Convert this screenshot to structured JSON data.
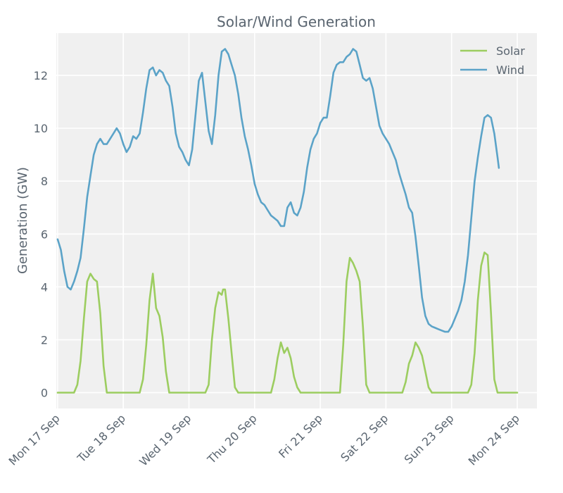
{
  "chart_data": {
    "type": "line",
    "title": "Solar/Wind Generation",
    "xlabel": "",
    "ylabel": "Generation (GW)",
    "xlim": [
      -0.02,
      7.3
    ],
    "ylim": [
      -0.6,
      13.6
    ],
    "yticks": [
      0,
      2,
      4,
      6,
      8,
      10,
      12
    ],
    "xticks": [
      {
        "pos": 0,
        "label": "Mon 17 Sep"
      },
      {
        "pos": 1,
        "label": "Tue 18 Sep"
      },
      {
        "pos": 2,
        "label": "Wed 19 Sep"
      },
      {
        "pos": 3,
        "label": "Thu 20 Sep"
      },
      {
        "pos": 4,
        "label": "Fri 21 Sep"
      },
      {
        "pos": 5,
        "label": "Sat 22 Sep"
      },
      {
        "pos": 6,
        "label": "Sun 23 Sep"
      },
      {
        "pos": 7,
        "label": "Mon 24 Sep"
      }
    ],
    "grid": true,
    "legend_position": "top-right",
    "series": [
      {
        "name": "Solar",
        "color": "#9ccd60",
        "points": [
          [
            0.0,
            0
          ],
          [
            0.25,
            0
          ],
          [
            0.3,
            0.3
          ],
          [
            0.35,
            1.2
          ],
          [
            0.4,
            2.8
          ],
          [
            0.45,
            4.2
          ],
          [
            0.5,
            4.5
          ],
          [
            0.55,
            4.3
          ],
          [
            0.6,
            4.2
          ],
          [
            0.65,
            3.0
          ],
          [
            0.7,
            1.0
          ],
          [
            0.75,
            0
          ],
          [
            1.0,
            0
          ],
          [
            1.25,
            0
          ],
          [
            1.3,
            0.5
          ],
          [
            1.35,
            1.8
          ],
          [
            1.4,
            3.5
          ],
          [
            1.45,
            4.5
          ],
          [
            1.5,
            3.2
          ],
          [
            1.55,
            2.9
          ],
          [
            1.6,
            2.1
          ],
          [
            1.65,
            0.8
          ],
          [
            1.7,
            0
          ],
          [
            2.0,
            0
          ],
          [
            2.25,
            0
          ],
          [
            2.3,
            0.3
          ],
          [
            2.35,
            2.0
          ],
          [
            2.4,
            3.2
          ],
          [
            2.45,
            3.8
          ],
          [
            2.5,
            3.7
          ],
          [
            2.52,
            3.9
          ],
          [
            2.55,
            3.9
          ],
          [
            2.6,
            2.8
          ],
          [
            2.65,
            1.5
          ],
          [
            2.7,
            0.2
          ],
          [
            2.75,
            0
          ],
          [
            3.0,
            0
          ],
          [
            3.25,
            0
          ],
          [
            3.3,
            0.5
          ],
          [
            3.35,
            1.3
          ],
          [
            3.4,
            1.9
          ],
          [
            3.45,
            1.5
          ],
          [
            3.5,
            1.7
          ],
          [
            3.55,
            1.3
          ],
          [
            3.6,
            0.6
          ],
          [
            3.65,
            0.2
          ],
          [
            3.7,
            0
          ],
          [
            4.0,
            0
          ],
          [
            4.3,
            0
          ],
          [
            4.35,
            1.8
          ],
          [
            4.4,
            4.2
          ],
          [
            4.45,
            5.1
          ],
          [
            4.5,
            4.9
          ],
          [
            4.55,
            4.6
          ],
          [
            4.6,
            4.2
          ],
          [
            4.65,
            2.5
          ],
          [
            4.7,
            0.3
          ],
          [
            4.75,
            0
          ],
          [
            5.0,
            0
          ],
          [
            5.25,
            0
          ],
          [
            5.3,
            0.4
          ],
          [
            5.35,
            1.1
          ],
          [
            5.4,
            1.4
          ],
          [
            5.45,
            1.9
          ],
          [
            5.5,
            1.7
          ],
          [
            5.55,
            1.4
          ],
          [
            5.6,
            0.8
          ],
          [
            5.65,
            0.2
          ],
          [
            5.7,
            0
          ],
          [
            6.0,
            0
          ],
          [
            6.25,
            0
          ],
          [
            6.3,
            0.3
          ],
          [
            6.35,
            1.5
          ],
          [
            6.4,
            3.5
          ],
          [
            6.45,
            4.8
          ],
          [
            6.5,
            5.3
          ],
          [
            6.55,
            5.2
          ],
          [
            6.6,
            3.0
          ],
          [
            6.65,
            0.5
          ],
          [
            6.7,
            0
          ],
          [
            7.0,
            0
          ]
        ]
      },
      {
        "name": "Wind",
        "color": "#5ba3c8",
        "points": [
          [
            0.0,
            5.8
          ],
          [
            0.05,
            5.4
          ],
          [
            0.1,
            4.6
          ],
          [
            0.15,
            4.0
          ],
          [
            0.2,
            3.9
          ],
          [
            0.25,
            4.2
          ],
          [
            0.3,
            4.6
          ],
          [
            0.35,
            5.1
          ],
          [
            0.4,
            6.2
          ],
          [
            0.45,
            7.4
          ],
          [
            0.5,
            8.2
          ],
          [
            0.55,
            9.0
          ],
          [
            0.6,
            9.4
          ],
          [
            0.65,
            9.6
          ],
          [
            0.7,
            9.4
          ],
          [
            0.75,
            9.4
          ],
          [
            0.8,
            9.6
          ],
          [
            0.85,
            9.8
          ],
          [
            0.9,
            10.0
          ],
          [
            0.95,
            9.8
          ],
          [
            1.0,
            9.4
          ],
          [
            1.05,
            9.1
          ],
          [
            1.1,
            9.3
          ],
          [
            1.15,
            9.7
          ],
          [
            1.2,
            9.6
          ],
          [
            1.25,
            9.8
          ],
          [
            1.3,
            10.6
          ],
          [
            1.35,
            11.5
          ],
          [
            1.4,
            12.2
          ],
          [
            1.45,
            12.3
          ],
          [
            1.5,
            12.0
          ],
          [
            1.55,
            12.2
          ],
          [
            1.6,
            12.1
          ],
          [
            1.65,
            11.8
          ],
          [
            1.7,
            11.6
          ],
          [
            1.75,
            10.8
          ],
          [
            1.8,
            9.8
          ],
          [
            1.85,
            9.3
          ],
          [
            1.9,
            9.1
          ],
          [
            1.95,
            8.8
          ],
          [
            2.0,
            8.6
          ],
          [
            2.05,
            9.2
          ],
          [
            2.1,
            10.5
          ],
          [
            2.15,
            11.8
          ],
          [
            2.2,
            12.1
          ],
          [
            2.25,
            11.0
          ],
          [
            2.3,
            9.9
          ],
          [
            2.35,
            9.4
          ],
          [
            2.4,
            10.5
          ],
          [
            2.45,
            12.0
          ],
          [
            2.5,
            12.9
          ],
          [
            2.55,
            13.0
          ],
          [
            2.6,
            12.8
          ],
          [
            2.65,
            12.4
          ],
          [
            2.7,
            12.0
          ],
          [
            2.75,
            11.3
          ],
          [
            2.8,
            10.4
          ],
          [
            2.85,
            9.7
          ],
          [
            2.9,
            9.2
          ],
          [
            2.95,
            8.6
          ],
          [
            3.0,
            7.9
          ],
          [
            3.05,
            7.5
          ],
          [
            3.1,
            7.2
          ],
          [
            3.15,
            7.1
          ],
          [
            3.2,
            6.9
          ],
          [
            3.25,
            6.7
          ],
          [
            3.3,
            6.6
          ],
          [
            3.35,
            6.5
          ],
          [
            3.4,
            6.3
          ],
          [
            3.45,
            6.3
          ],
          [
            3.5,
            7.0
          ],
          [
            3.55,
            7.2
          ],
          [
            3.6,
            6.8
          ],
          [
            3.65,
            6.7
          ],
          [
            3.7,
            7.0
          ],
          [
            3.75,
            7.6
          ],
          [
            3.8,
            8.5
          ],
          [
            3.85,
            9.2
          ],
          [
            3.9,
            9.6
          ],
          [
            3.95,
            9.8
          ],
          [
            4.0,
            10.2
          ],
          [
            4.05,
            10.4
          ],
          [
            4.1,
            10.4
          ],
          [
            4.15,
            11.2
          ],
          [
            4.2,
            12.1
          ],
          [
            4.25,
            12.4
          ],
          [
            4.3,
            12.5
          ],
          [
            4.35,
            12.5
          ],
          [
            4.4,
            12.7
          ],
          [
            4.45,
            12.8
          ],
          [
            4.5,
            13.0
          ],
          [
            4.55,
            12.9
          ],
          [
            4.6,
            12.4
          ],
          [
            4.65,
            11.9
          ],
          [
            4.7,
            11.8
          ],
          [
            4.75,
            11.9
          ],
          [
            4.8,
            11.5
          ],
          [
            4.85,
            10.8
          ],
          [
            4.9,
            10.1
          ],
          [
            4.95,
            9.8
          ],
          [
            5.0,
            9.6
          ],
          [
            5.05,
            9.4
          ],
          [
            5.1,
            9.1
          ],
          [
            5.15,
            8.8
          ],
          [
            5.2,
            8.3
          ],
          [
            5.25,
            7.9
          ],
          [
            5.3,
            7.5
          ],
          [
            5.35,
            7.0
          ],
          [
            5.4,
            6.8
          ],
          [
            5.45,
            5.9
          ],
          [
            5.5,
            4.8
          ],
          [
            5.55,
            3.6
          ],
          [
            5.6,
            2.9
          ],
          [
            5.65,
            2.6
          ],
          [
            5.7,
            2.5
          ],
          [
            5.75,
            2.45
          ],
          [
            5.8,
            2.4
          ],
          [
            5.85,
            2.35
          ],
          [
            5.9,
            2.3
          ],
          [
            5.95,
            2.3
          ],
          [
            6.0,
            2.5
          ],
          [
            6.05,
            2.8
          ],
          [
            6.1,
            3.1
          ],
          [
            6.15,
            3.5
          ],
          [
            6.2,
            4.2
          ],
          [
            6.25,
            5.2
          ],
          [
            6.3,
            6.6
          ],
          [
            6.35,
            8.0
          ],
          [
            6.4,
            8.9
          ],
          [
            6.45,
            9.7
          ],
          [
            6.5,
            10.4
          ],
          [
            6.55,
            10.5
          ],
          [
            6.6,
            10.4
          ],
          [
            6.65,
            9.8
          ],
          [
            6.7,
            8.9
          ],
          [
            6.72,
            8.5
          ]
        ]
      }
    ]
  }
}
